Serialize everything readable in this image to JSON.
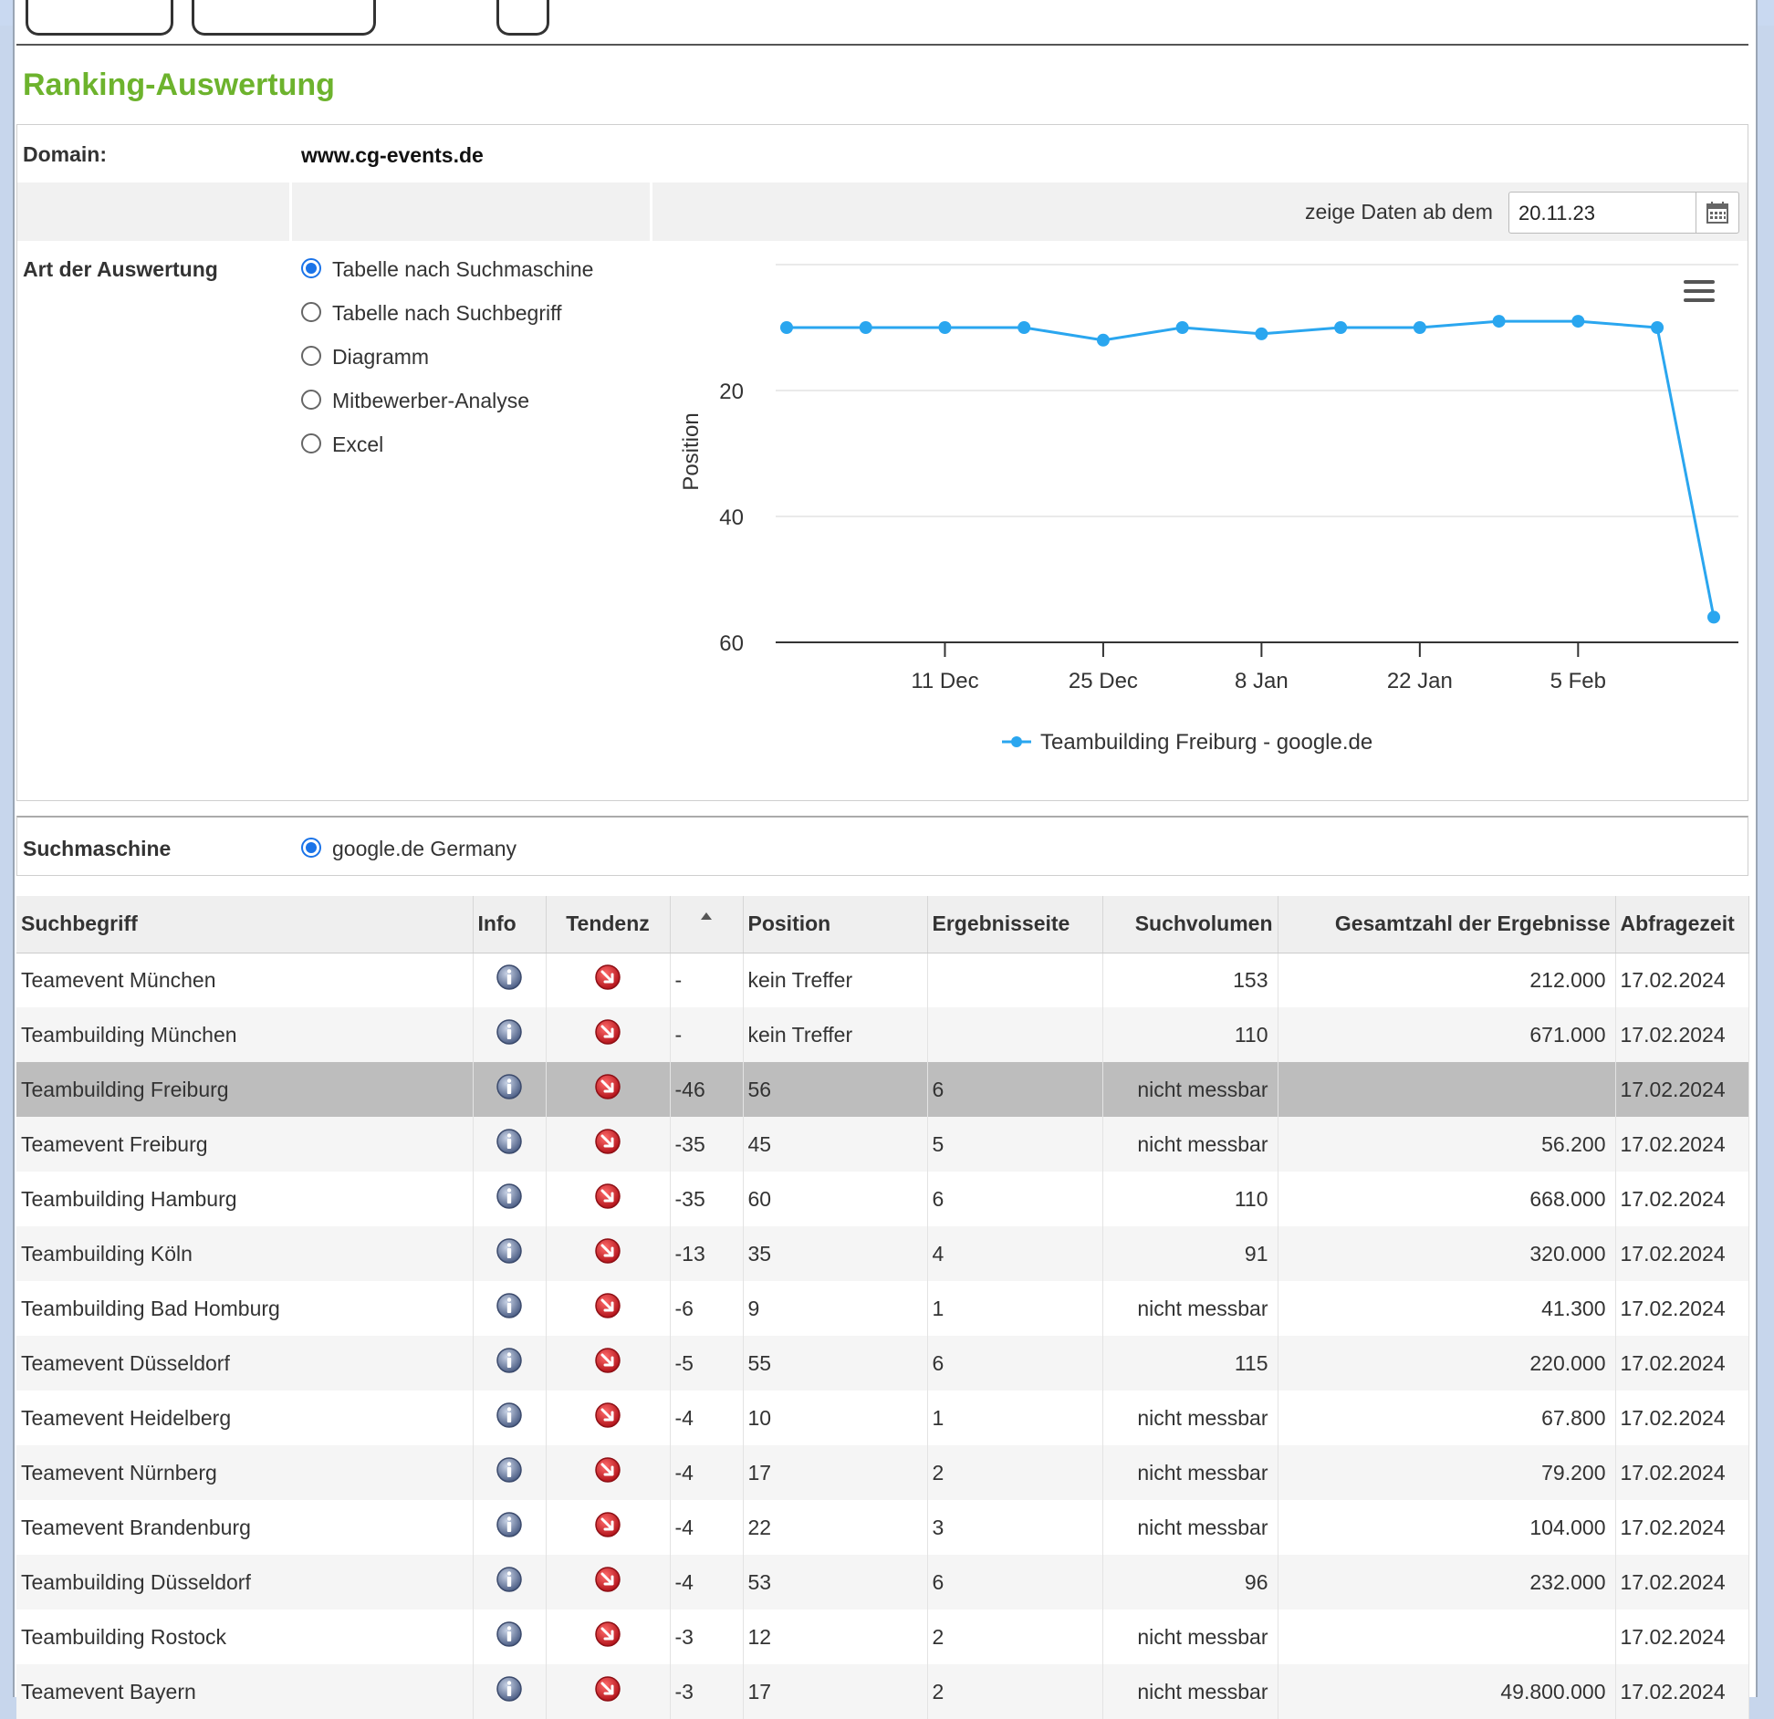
{
  "page": {
    "title": "Ranking-Auswertung"
  },
  "domain": {
    "label": "Domain:",
    "value": "www.cg-events.de"
  },
  "date_filter": {
    "label": "zeige Daten ab dem",
    "value": "20.11.23"
  },
  "analysis": {
    "label": "Art der Auswertung",
    "options": [
      {
        "label": "Tabelle nach Suchmaschine",
        "selected": true
      },
      {
        "label": "Tabelle nach Suchbegriff",
        "selected": false
      },
      {
        "label": "Diagramm",
        "selected": false
      },
      {
        "label": "Mitbewerber-Analyse",
        "selected": false
      },
      {
        "label": "Excel",
        "selected": false
      }
    ]
  },
  "chart_data": {
    "type": "line",
    "title": "",
    "ylabel": "Position",
    "xlabel": "",
    "y_reversed": true,
    "ylim": [
      0,
      60
    ],
    "yticks": [
      20,
      40,
      60
    ],
    "x_ticks": [
      "11 Dec",
      "25 Dec",
      "8 Jan",
      "22 Jan",
      "5 Feb"
    ],
    "x_tick_dates": [
      "2023-12-11",
      "2023-12-25",
      "2024-01-08",
      "2024-01-22",
      "2024-02-05"
    ],
    "legend_position": "bottom-center",
    "grid": true,
    "series": [
      {
        "name": "Teambuilding Freiburg - google.de",
        "color": "#2aa6ef",
        "x": [
          "2023-11-27",
          "2023-12-04",
          "2023-12-11",
          "2023-12-18",
          "2023-12-25",
          "2024-01-01",
          "2024-01-08",
          "2024-01-15",
          "2024-01-22",
          "2024-01-29",
          "2024-02-05",
          "2024-02-12"
        ],
        "y": [
          10,
          10,
          10,
          10,
          12,
          10,
          11,
          10,
          10,
          9,
          9,
          10
        ],
        "last_point": {
          "x": "2024-02-17",
          "y": 56
        }
      }
    ]
  },
  "engine": {
    "label": "Suchmaschine",
    "option": "google.de Germany"
  },
  "table": {
    "headers": [
      "Suchbegriff",
      "Info",
      "Tendenz",
      "",
      "Position",
      "Ergebnisseite",
      "Suchvolumen",
      "Gesamtzahl der Ergebnisse",
      "Abfragezeit"
    ],
    "rows": [
      {
        "term": "Teamevent München",
        "change": "-",
        "position": "kein Treffer",
        "page": "",
        "volume": "153",
        "total": "212.000",
        "time": "17.02.2024"
      },
      {
        "term": "Teambuilding München",
        "change": "-",
        "position": "kein Treffer",
        "page": "",
        "volume": "110",
        "total": "671.000",
        "time": "17.02.2024"
      },
      {
        "term": "Teambuilding Freiburg",
        "change": "-46",
        "position": "56",
        "page": "6",
        "volume": "nicht messbar",
        "total": "",
        "time": "17.02.2024",
        "selected": true
      },
      {
        "term": "Teamevent Freiburg",
        "change": "-35",
        "position": "45",
        "page": "5",
        "volume": "nicht messbar",
        "total": "56.200",
        "time": "17.02.2024"
      },
      {
        "term": "Teambuilding Hamburg",
        "change": "-35",
        "position": "60",
        "page": "6",
        "volume": "110",
        "total": "668.000",
        "time": "17.02.2024"
      },
      {
        "term": "Teambuilding Köln",
        "change": "-13",
        "position": "35",
        "page": "4",
        "volume": "91",
        "total": "320.000",
        "time": "17.02.2024"
      },
      {
        "term": "Teambuilding Bad Homburg",
        "change": "-6",
        "position": "9",
        "page": "1",
        "volume": "nicht messbar",
        "total": "41.300",
        "time": "17.02.2024"
      },
      {
        "term": "Teamevent Düsseldorf",
        "change": "-5",
        "position": "55",
        "page": "6",
        "volume": "115",
        "total": "220.000",
        "time": "17.02.2024"
      },
      {
        "term": "Teamevent Heidelberg",
        "change": "-4",
        "position": "10",
        "page": "1",
        "volume": "nicht messbar",
        "total": "67.800",
        "time": "17.02.2024"
      },
      {
        "term": "Teamevent Nürnberg",
        "change": "-4",
        "position": "17",
        "page": "2",
        "volume": "nicht messbar",
        "total": "79.200",
        "time": "17.02.2024"
      },
      {
        "term": "Teamevent Brandenburg",
        "change": "-4",
        "position": "22",
        "page": "3",
        "volume": "nicht messbar",
        "total": "104.000",
        "time": "17.02.2024"
      },
      {
        "term": "Teambuilding Düsseldorf",
        "change": "-4",
        "position": "53",
        "page": "6",
        "volume": "96",
        "total": "232.000",
        "time": "17.02.2024"
      },
      {
        "term": "Teambuilding Rostock",
        "change": "-3",
        "position": "12",
        "page": "2",
        "volume": "nicht messbar",
        "total": "",
        "time": "17.02.2024"
      },
      {
        "term": "Teamevent Bayern",
        "change": "-3",
        "position": "17",
        "page": "2",
        "volume": "nicht messbar",
        "total": "49.800.000",
        "time": "17.02.2024"
      }
    ]
  },
  "icons": {
    "info": "info-icon",
    "trend": "trend-down-icon",
    "calendar": "calendar-icon",
    "menu": "hamburger-menu-icon",
    "sort": "sort-asc-icon"
  },
  "colors": {
    "title": "#6db32d",
    "accent": "#1a73e8",
    "series": "#2aa6ef",
    "trend_down": "#d9262c"
  }
}
